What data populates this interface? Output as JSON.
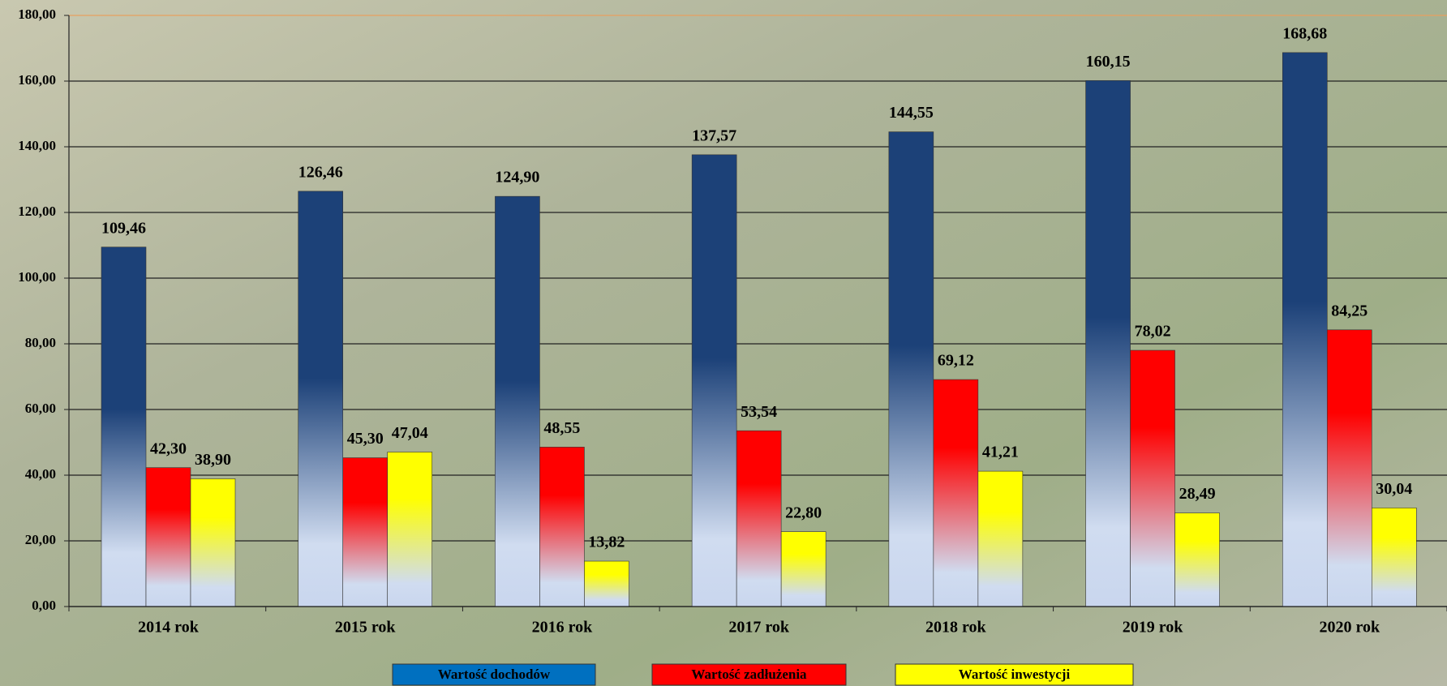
{
  "chart_data": {
    "type": "bar",
    "categories": [
      "2014 rok",
      "2015 rok",
      "2016 rok",
      "2017 rok",
      "2018 rok",
      "2019 rok",
      "2020 rok"
    ],
    "series": [
      {
        "name": "Wartość dochodów",
        "color": "#1c4178",
        "values": [
          109.46,
          126.46,
          124.9,
          137.57,
          144.55,
          160.15,
          168.68
        ],
        "value_labels": [
          "109,46",
          "126,46",
          "124,90",
          "137,57",
          "144,55",
          "160,15",
          "168,68"
        ]
      },
      {
        "name": "Wartość zadłużenia",
        "color": "#ff0000",
        "values": [
          42.3,
          45.3,
          48.55,
          53.54,
          69.12,
          78.02,
          84.25
        ],
        "value_labels": [
          "42,30",
          "45,30",
          "48,55",
          "53,54",
          "69,12",
          "78,02",
          "84,25"
        ]
      },
      {
        "name": "Wartość inwestycji",
        "color": "#ffff00",
        "values": [
          38.9,
          47.04,
          13.82,
          22.8,
          41.21,
          28.49,
          30.04
        ],
        "value_labels": [
          "38,90",
          "47,04",
          "13,82",
          "22,80",
          "41,21",
          "28,49",
          "30,04"
        ]
      }
    ],
    "ylim": [
      0,
      180
    ],
    "yticks": [
      {
        "value": 0,
        "label": "0,00"
      },
      {
        "value": 20,
        "label": "20,00"
      },
      {
        "value": 40,
        "label": "40,00"
      },
      {
        "value": 60,
        "label": "60,00"
      },
      {
        "value": 80,
        "label": "80,00"
      },
      {
        "value": 100,
        "label": "100,00"
      },
      {
        "value": 120,
        "label": "120,00"
      },
      {
        "value": 140,
        "label": "140,00"
      },
      {
        "value": 160,
        "label": "160,00"
      },
      {
        "value": 180,
        "label": "180,00"
      }
    ],
    "grid": true,
    "legend": "bottom"
  }
}
